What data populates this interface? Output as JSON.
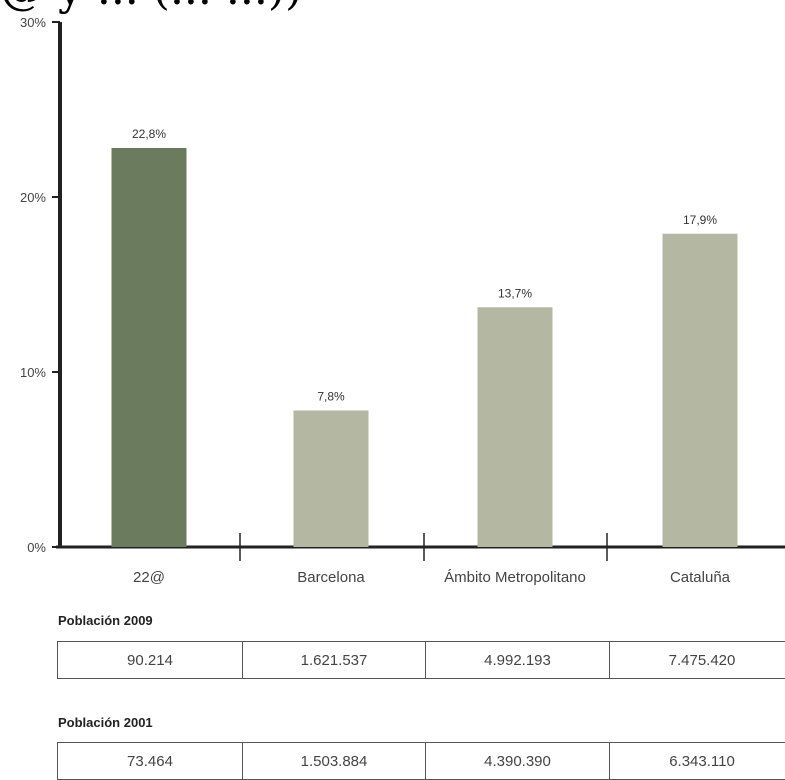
{
  "header": {
    "title_fragment": "@ y ... (... ...))"
  },
  "chart_data": {
    "type": "bar",
    "categories": [
      "22@",
      "Barcelona",
      "Ámbito Metropolitano",
      "Cataluña"
    ],
    "values": [
      22.8,
      7.8,
      13.7,
      17.9
    ],
    "value_labels": [
      "22,8%",
      "7,8%",
      "13,7%",
      "17,9%"
    ],
    "bar_colors": [
      "#6b7b5e",
      "#b4b8a3",
      "#b4b8a3",
      "#b4b8a3"
    ],
    "ylim": [
      0,
      30
    ],
    "yticks": [
      0,
      10,
      20,
      30
    ],
    "ytick_labels": [
      "0%",
      "10%",
      "20%",
      "30%"
    ],
    "title": "",
    "xlabel": "",
    "ylabel": ""
  },
  "tables": [
    {
      "label": "Población 2009",
      "values": [
        "90.214",
        "1.621.537",
        "4.992.193",
        "7.475.420"
      ]
    },
    {
      "label": "Población 2001",
      "values": [
        "73.464",
        "1.503.884",
        "4.390.390",
        "6.343.110"
      ]
    }
  ]
}
